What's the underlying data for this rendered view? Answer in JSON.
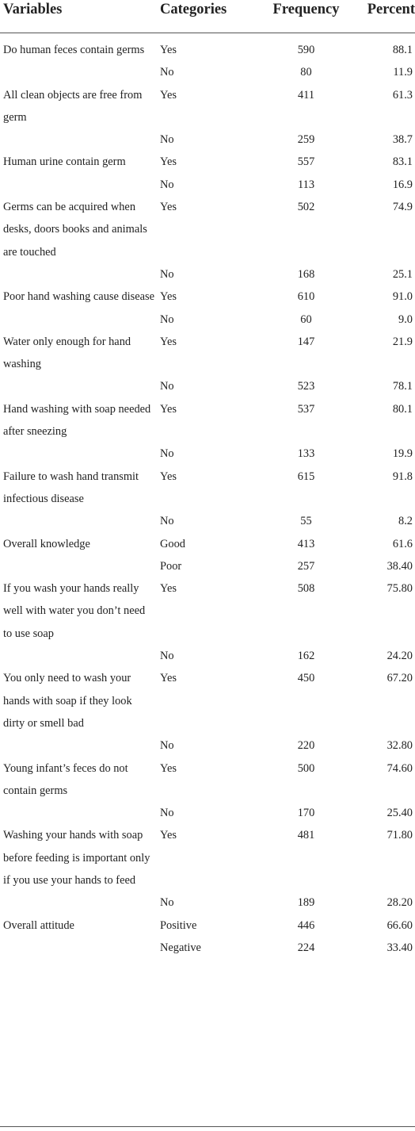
{
  "headers": {
    "variables": "Variables",
    "categories": "Categories",
    "frequency": "Frequency",
    "percent": "Percent"
  },
  "rows": [
    {
      "variable": "Do human feces contain germs",
      "category": "Yes",
      "frequency": "590",
      "percent": "88.1"
    },
    {
      "variable": "",
      "category": "No",
      "frequency": "80",
      "percent": "11.9"
    },
    {
      "variable": "All clean objects are free from germ",
      "category": "Yes",
      "frequency": "411",
      "percent": "61.3"
    },
    {
      "variable": "",
      "category": "No",
      "frequency": "259",
      "percent": "38.7"
    },
    {
      "variable": "Human urine contain germ",
      "category": "Yes",
      "frequency": "557",
      "percent": "83.1"
    },
    {
      "variable": "",
      "category": "No",
      "frequency": "113",
      "percent": "16.9"
    },
    {
      "variable": "Germs can be acquired when desks, doors books and animals are touched",
      "category": "Yes",
      "frequency": "502",
      "percent": "74.9"
    },
    {
      "variable": "",
      "category": "No",
      "frequency": "168",
      "percent": "25.1"
    },
    {
      "variable": "Poor hand washing cause disease",
      "category": "Yes",
      "frequency": "610",
      "percent": "91.0"
    },
    {
      "variable": "",
      "category": "No",
      "frequency": "60",
      "percent": "9.0"
    },
    {
      "variable": "Water only enough for hand washing",
      "category": "Yes",
      "frequency": "147",
      "percent": "21.9"
    },
    {
      "variable": "",
      "category": "No",
      "frequency": "523",
      "percent": "78.1"
    },
    {
      "variable": "Hand washing with soap needed after sneezing",
      "category": "Yes",
      "frequency": "537",
      "percent": "80.1"
    },
    {
      "variable": "",
      "category": "No",
      "frequency": "133",
      "percent": "19.9"
    },
    {
      "variable": "Failure to wash hand transmit infectious disease",
      "category": "Yes",
      "frequency": "615",
      "percent": "91.8"
    },
    {
      "variable": "",
      "category": "No",
      "frequency": "55",
      "percent": "8.2"
    },
    {
      "variable": "Overall knowledge",
      "category": "Good",
      "frequency": "413",
      "percent": "61.6"
    },
    {
      "variable": "",
      "category": "Poor",
      "frequency": "257",
      "percent": "38.40"
    },
    {
      "variable": "If you wash your hands really well with water you don’t need to use soap",
      "category": "Yes",
      "frequency": "508",
      "percent": "75.80"
    },
    {
      "variable": "",
      "category": "No",
      "frequency": "162",
      "percent": "24.20"
    },
    {
      "variable": "You only need to wash your hands with soap if they look dirty or smell bad",
      "category": "Yes",
      "frequency": "450",
      "percent": "67.20"
    },
    {
      "variable": "",
      "category": "No",
      "frequency": "220",
      "percent": "32.80"
    },
    {
      "variable": "Young infant’s feces do not contain germs",
      "category": "Yes",
      "frequency": "500",
      "percent": "74.60"
    },
    {
      "variable": "",
      "category": "No",
      "frequency": "170",
      "percent": "25.40"
    },
    {
      "variable": "Washing your hands with soap before feeding is important only if you use your hands to feed",
      "category": "Yes",
      "frequency": "481",
      "percent": "71.80"
    },
    {
      "variable": "",
      "category": "No",
      "frequency": "189",
      "percent": "28.20"
    },
    {
      "variable": "Overall attitude",
      "category": "Positive",
      "frequency": "446",
      "percent": "66.60"
    },
    {
      "variable": "",
      "category": "Negative",
      "frequency": "224",
      "percent": "33.40"
    }
  ]
}
